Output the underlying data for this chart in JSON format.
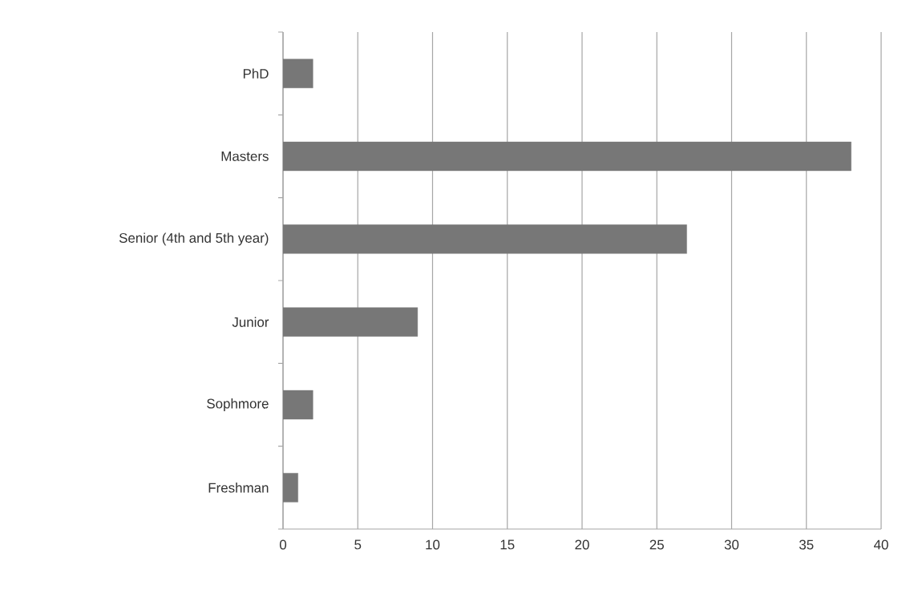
{
  "chart_data": {
    "type": "bar",
    "orientation": "horizontal",
    "categories": [
      "PhD",
      "Masters",
      "Senior (4th and 5th year)",
      "Junior",
      "Sophmore",
      "Freshman"
    ],
    "values": [
      2,
      38,
      27,
      9,
      2,
      1
    ],
    "color": "#777777",
    "xlim": [
      0,
      40
    ],
    "xticks": [
      0,
      5,
      10,
      15,
      20,
      25,
      30,
      35,
      40
    ],
    "grid": "x"
  }
}
